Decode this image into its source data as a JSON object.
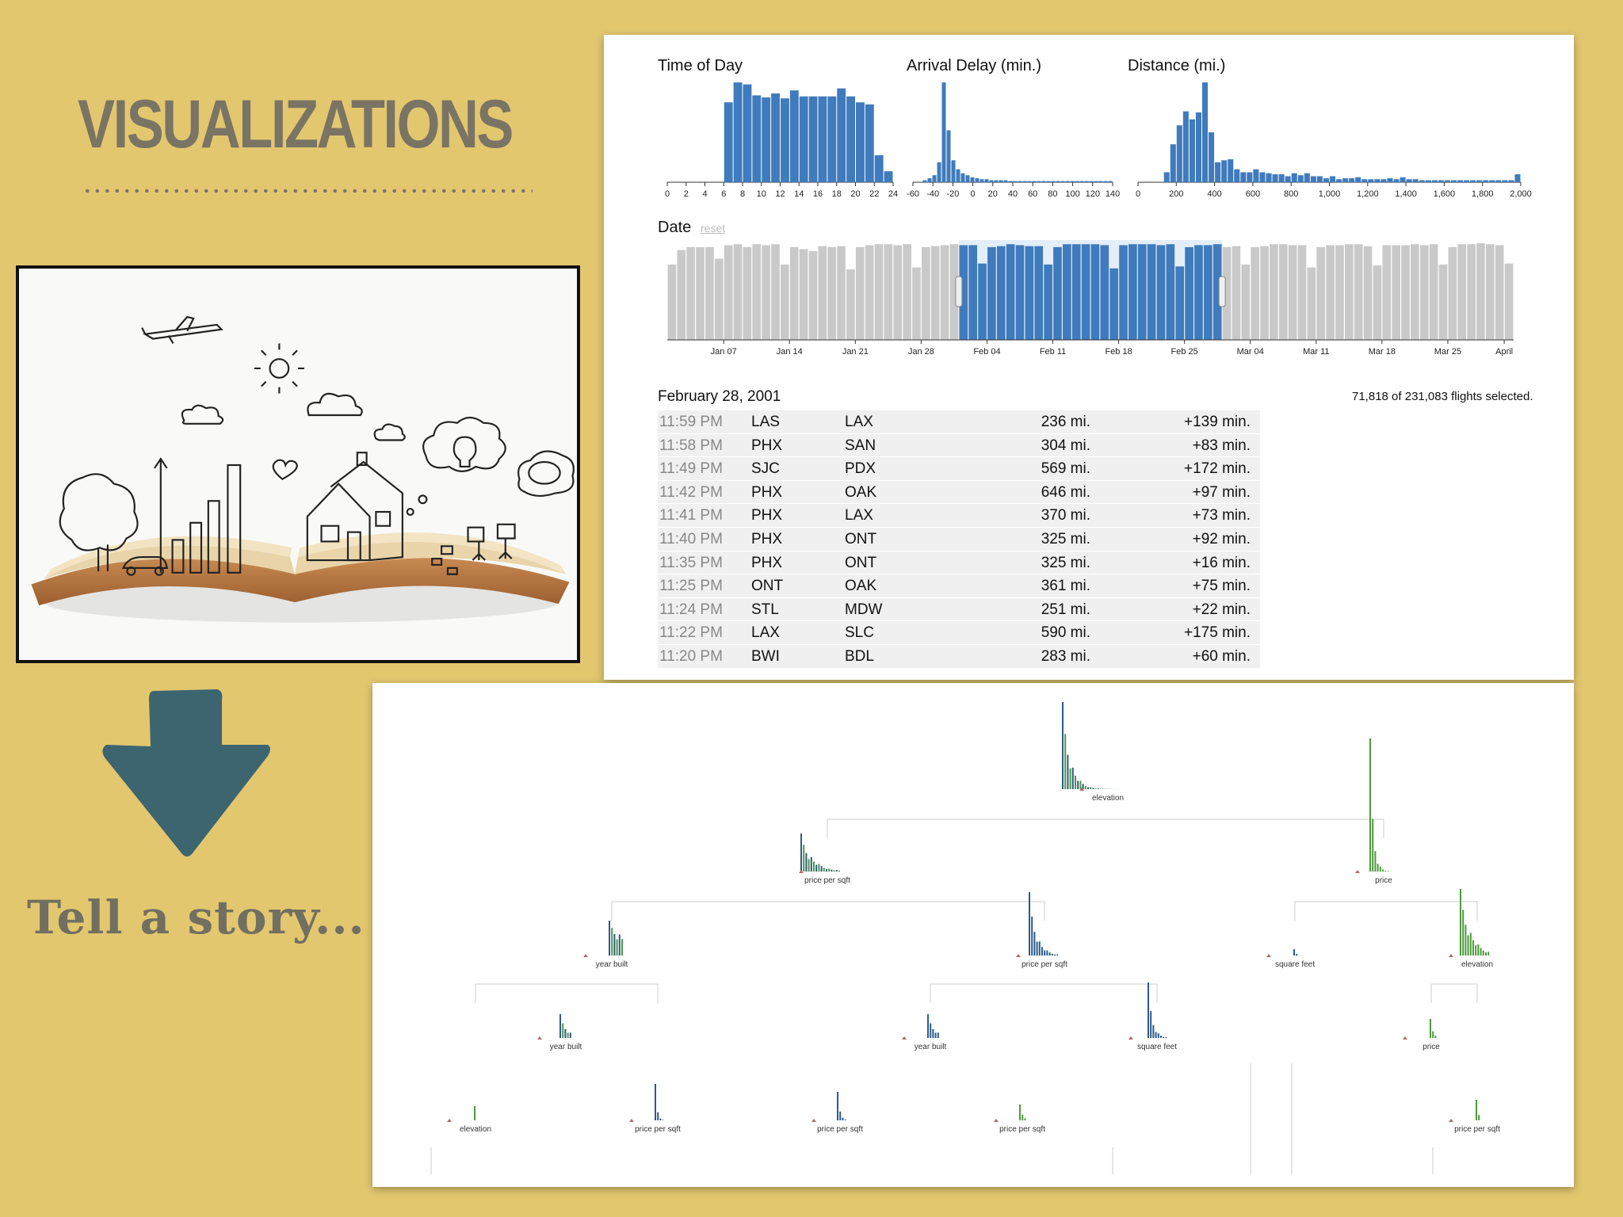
{
  "slide": {
    "title": "VISUALIZATIONS",
    "tagline": "Tell a story...",
    "colors": {
      "background": "#e2c76f",
      "arrow": "#3c6570",
      "title": "#7a7464"
    },
    "icons": [
      "open-book-illustration",
      "down-arrow-icon"
    ]
  },
  "crossfilter": {
    "time_title": "Time of Day",
    "delay_title": "Arrival Delay (min.)",
    "distance_title": "Distance (mi.)",
    "date_title": "Date",
    "reset_label": "reset",
    "selected_date": "February 28, 2001",
    "count_text": "71,818 of 231,083 flights selected.",
    "colors": {
      "selected": "#3f7bbd",
      "unselected": "#c9c9c9"
    },
    "flights": [
      {
        "time": "11:59 PM",
        "origin": "LAS",
        "destination": "LAX",
        "distance": "236 mi.",
        "delay": "+139 min."
      },
      {
        "time": "11:58 PM",
        "origin": "PHX",
        "destination": "SAN",
        "distance": "304 mi.",
        "delay": "+83 min."
      },
      {
        "time": "11:49 PM",
        "origin": "SJC",
        "destination": "PDX",
        "distance": "569 mi.",
        "delay": "+172 min."
      },
      {
        "time": "11:42 PM",
        "origin": "PHX",
        "destination": "OAK",
        "distance": "646 mi.",
        "delay": "+97 min."
      },
      {
        "time": "11:41 PM",
        "origin": "PHX",
        "destination": "LAX",
        "distance": "370 mi.",
        "delay": "+73 min."
      },
      {
        "time": "11:40 PM",
        "origin": "PHX",
        "destination": "ONT",
        "distance": "325 mi.",
        "delay": "+92 min."
      },
      {
        "time": "11:35 PM",
        "origin": "PHX",
        "destination": "ONT",
        "distance": "325 mi.",
        "delay": "+16 min."
      },
      {
        "time": "11:25 PM",
        "origin": "ONT",
        "destination": "OAK",
        "distance": "361 mi.",
        "delay": "+75 min."
      },
      {
        "time": "11:24 PM",
        "origin": "STL",
        "destination": "MDW",
        "distance": "251 mi.",
        "delay": "+22 min."
      },
      {
        "time": "11:22 PM",
        "origin": "LAX",
        "destination": "SLC",
        "distance": "590 mi.",
        "delay": "+175 min."
      },
      {
        "time": "11:20 PM",
        "origin": "BWI",
        "destination": "BDL",
        "distance": "283 mi.",
        "delay": "+60 min."
      }
    ]
  },
  "tree": {
    "colors": {
      "blue": "#2d5a8c",
      "green": "#4c9a3c",
      "lines": "#cccccc"
    }
  },
  "chart_data": [
    {
      "type": "bar",
      "title": "Time of Day",
      "x_ticks": [
        "0",
        "2",
        "4",
        "6",
        "8",
        "10",
        "12",
        "14",
        "16",
        "18",
        "20",
        "22",
        "24"
      ],
      "xlim": [
        0,
        24
      ],
      "values": [
        0,
        0,
        0,
        0,
        0,
        0,
        0.8,
        1,
        0.98,
        0.87,
        0.85,
        0.89,
        0.84,
        0.92,
        0.86,
        0.86,
        0.86,
        0.86,
        0.94,
        0.86,
        0.8,
        0.78,
        0.27,
        0.11
      ]
    },
    {
      "type": "bar",
      "title": "Arrival Delay (min.)",
      "x_ticks": [
        "-60",
        "-40",
        "-20",
        "0",
        "20",
        "40",
        "60",
        "80",
        "100",
        "120",
        "140"
      ],
      "xlim": [
        -60,
        150
      ],
      "values": [
        0,
        0,
        0.02,
        0.04,
        0.07,
        0.2,
        1,
        0.52,
        0.22,
        0.13,
        0.09,
        0.07,
        0.05,
        0.04,
        0.03,
        0.03,
        0.02,
        0.02,
        0.02,
        0.02,
        0.01,
        0.01,
        0.01,
        0.01,
        0.01,
        0.01,
        0.01,
        0.01,
        0.01,
        0.01,
        0.01,
        0.01,
        0.01,
        0.01,
        0.01,
        0.01,
        0.01,
        0.01,
        0.01,
        0.01,
        0.01,
        0.01
      ]
    },
    {
      "type": "bar",
      "title": "Distance (mi.)",
      "x_ticks": [
        "0",
        "200",
        "400",
        "600",
        "800",
        "1,000",
        "1,200",
        "1,400",
        "1,600",
        "1,800",
        "2,000"
      ],
      "xlim": [
        0,
        2000
      ],
      "values": [
        0,
        0,
        0,
        0,
        0.1,
        0.38,
        0.57,
        0.71,
        0.63,
        0.7,
        1,
        0.5,
        0.2,
        0.22,
        0.23,
        0.13,
        0.1,
        0.1,
        0.13,
        0.1,
        0.09,
        0.08,
        0.08,
        0.06,
        0.09,
        0.07,
        0.09,
        0.06,
        0.06,
        0.04,
        0.06,
        0.03,
        0.04,
        0.04,
        0.05,
        0.03,
        0.03,
        0.03,
        0.03,
        0.04,
        0.03,
        0.05,
        0.03,
        0.03,
        0.02,
        0.02,
        0.02,
        0.02,
        0.02,
        0.02,
        0.02,
        0.02,
        0.02,
        0.02,
        0.02,
        0.02,
        0.02,
        0.02,
        0.02,
        0.08
      ]
    },
    {
      "type": "bar",
      "title": "Date",
      "x_ticks": [
        "Jan 07",
        "Jan 14",
        "Jan 21",
        "Jan 28",
        "Feb 04",
        "Feb 11",
        "Feb 18",
        "Feb 25",
        "Mar 04",
        "Mar 11",
        "Mar 18",
        "Mar 25",
        "April"
      ],
      "selected_range": [
        "Feb 01",
        "Feb 28"
      ],
      "values": [
        0.78,
        0.93,
        0.96,
        0.96,
        0.96,
        0.84,
        0.98,
        0.99,
        0.96,
        0.99,
        0.98,
        0.99,
        0.78,
        0.96,
        0.94,
        0.92,
        0.97,
        0.96,
        0.97,
        0.73,
        0.96,
        0.98,
        0.99,
        0.99,
        0.98,
        0.99,
        0.75,
        0.96,
        0.97,
        0.98,
        0.99,
        0.98,
        0.98,
        0.79,
        0.96,
        0.97,
        0.99,
        0.98,
        0.97,
        0.97,
        0.78,
        0.96,
        0.99,
        0.99,
        0.99,
        0.99,
        0.98,
        0.74,
        0.98,
        0.99,
        0.99,
        0.99,
        0.98,
        0.99,
        0.76,
        0.96,
        0.98,
        0.98,
        0.99,
        0.96,
        0.97,
        0.78,
        0.96,
        0.97,
        0.99,
        0.99,
        0.98,
        0.98,
        0.75,
        0.96,
        0.98,
        0.98,
        0.99,
        0.99,
        0.97,
        0.77,
        0.98,
        0.98,
        0.98,
        0.99,
        0.98,
        0.99,
        0.78,
        0.96,
        0.99,
        0.99,
        1,
        0.99,
        0.98,
        0.79
      ]
    },
    {
      "type": "tree",
      "node_labels": [
        "elevation",
        "price per sqft",
        "price",
        "year built",
        "price per sqft",
        "square feet",
        "elevation",
        "year built",
        "year built",
        "square feet",
        "price",
        "elevation",
        "price per sqft",
        "price per sqft",
        "price per sqft",
        "price per sqft"
      ]
    }
  ]
}
